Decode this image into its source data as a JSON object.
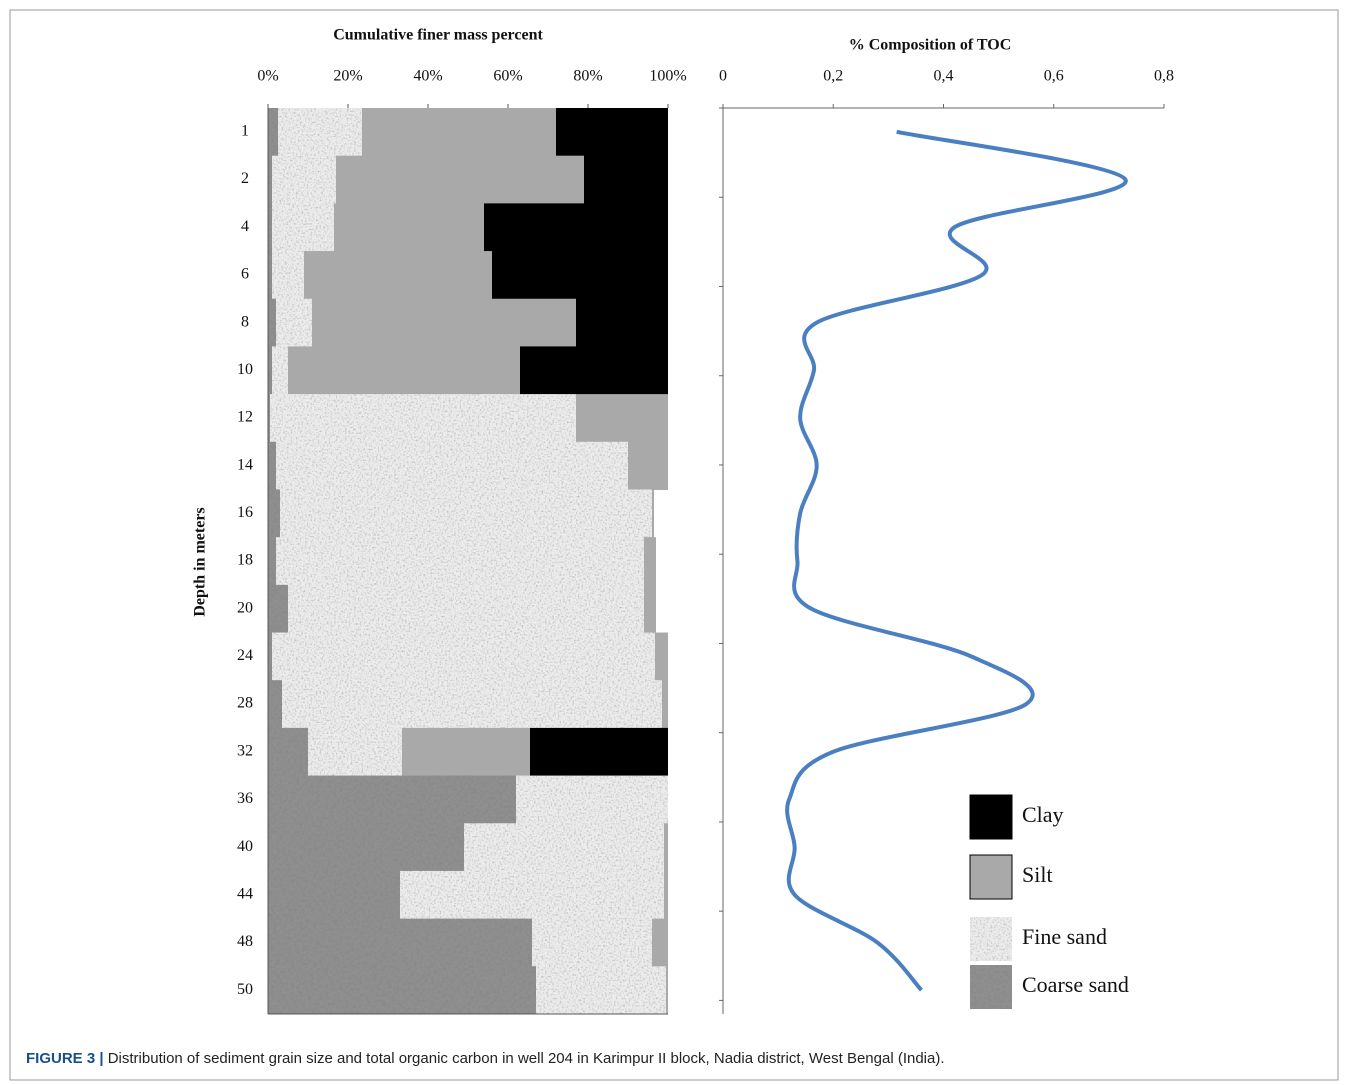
{
  "chart_data": [
    {
      "type": "bar",
      "orientation": "horizontal",
      "stacked": true,
      "title": "Cumulative finer mass percent",
      "y_label": "Depth in meters",
      "categories": [
        "1",
        "2",
        "4",
        "6",
        "8",
        "10",
        "12",
        "14",
        "16",
        "18",
        "20",
        "24",
        "28",
        "32",
        "36",
        "40",
        "44",
        "48",
        "50"
      ],
      "xlim": [
        0,
        100
      ],
      "xticks": [
        {
          "value": 0,
          "label": "0%"
        },
        {
          "value": 20,
          "label": "20%"
        },
        {
          "value": 40,
          "label": "40%"
        },
        {
          "value": 60,
          "label": "60%"
        },
        {
          "value": 80,
          "label": "80%"
        },
        {
          "value": 100,
          "label": "100%"
        }
      ],
      "legend": "lower right",
      "series": [
        {
          "name": "Coarse sand",
          "color": "#8f8f8f",
          "texture": "coarse",
          "values": [
            2.5,
            1,
            1,
            1,
            2,
            1,
            0.5,
            2,
            3,
            2,
            5,
            1,
            3.5,
            10,
            62,
            49,
            33,
            66,
            67
          ]
        },
        {
          "name": "Fine sand",
          "color": "#ececec",
          "texture": "fine",
          "values": [
            21,
            16,
            15.5,
            8,
            9,
            4,
            76.5,
            88,
            93,
            92,
            89,
            95.75,
            95,
            23.5,
            38,
            50,
            66,
            30,
            32.5
          ]
        },
        {
          "name": "Silt",
          "color": "#a9a9a9",
          "values": [
            48.5,
            62,
            37.5,
            47,
            66,
            58,
            23,
            10,
            0.5,
            3,
            3,
            3.25,
            1.5,
            32,
            0,
            1,
            1,
            4,
            0.5
          ]
        },
        {
          "name": "Clay",
          "color": "#000000",
          "values": [
            28,
            21,
            46,
            44,
            23,
            37,
            0,
            0,
            0,
            0,
            0,
            0,
            0,
            34.5,
            0,
            0,
            0,
            0,
            0
          ]
        }
      ]
    },
    {
      "type": "line",
      "title": "% Composition of TOC",
      "color": "#4a7fc1",
      "xlim": [
        0,
        0.8
      ],
      "xticks": [
        0,
        {
          "value": 0.2,
          "label": "0,2"
        },
        {
          "value": 0.4,
          "label": "0,4"
        },
        {
          "value": 0.6,
          "label": "0,6"
        },
        {
          "value": 0.8,
          "label": "0,8"
        }
      ],
      "values": [
        0.315,
        0.73,
        0.42,
        0.47,
        0.17,
        0.165,
        0.14,
        0.17,
        0.14,
        0.135,
        0.16,
        0.45,
        0.55,
        0.2,
        0.12,
        0.13,
        0.13,
        0.28,
        0.36
      ]
    }
  ],
  "caption": {
    "label": "FIGURE 3 |",
    "text": "Distribution of sediment grain size and total organic carbon in well 204 in Karimpur II block, Nadia district, West Bengal (India)."
  }
}
